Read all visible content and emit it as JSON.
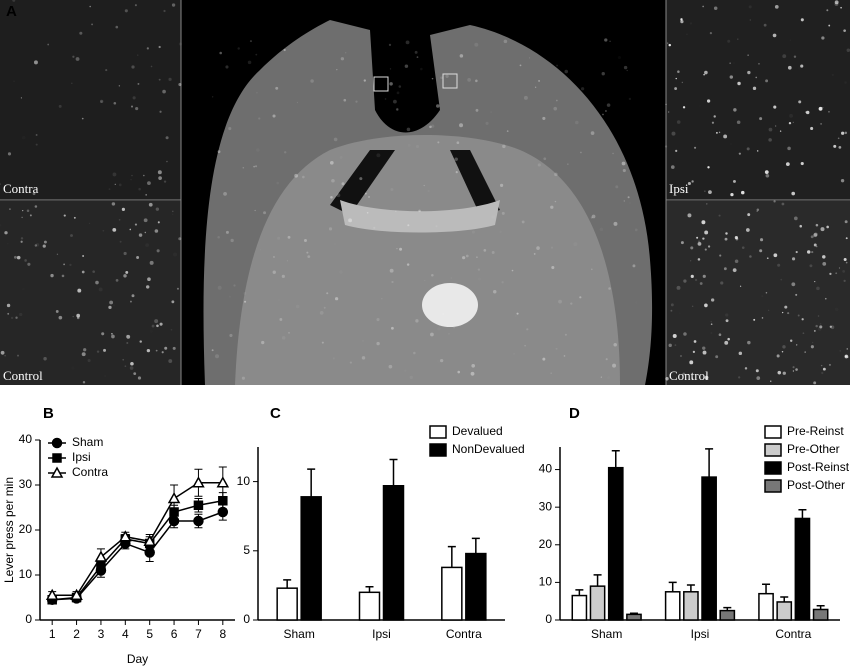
{
  "panel_labels": [
    "A",
    "B",
    "C",
    "D"
  ],
  "image_labels": [
    "Contra",
    "Control",
    "Ipsi",
    "Control"
  ],
  "chart_data": [
    {
      "type": "line",
      "xlabel": "Day",
      "ylabel": "Lever press per min",
      "x": [
        1,
        2,
        3,
        4,
        5,
        6,
        7,
        8
      ],
      "xlim": [
        0.5,
        8.5
      ],
      "xticks": [
        1,
        2,
        3,
        4,
        5,
        6,
        7,
        8
      ],
      "ylim": [
        0,
        40
      ],
      "yticks": [
        0,
        10,
        20,
        30,
        40
      ],
      "legend": "upper left",
      "series": [
        {
          "name": "Sham",
          "color": "#000000",
          "marker": "circle",
          "values": [
            4.5,
            4.8,
            11,
            17,
            15,
            22,
            22,
            24
          ],
          "errors": [
            0.8,
            0.8,
            1.5,
            1.2,
            2,
            1.5,
            1.5,
            1.8
          ]
        },
        {
          "name": "Ipsi",
          "color": "#000000",
          "marker": "square",
          "values": [
            4.5,
            5,
            12,
            18,
            17,
            24,
            25.5,
            26.5
          ],
          "errors": [
            0.8,
            0.8,
            1.5,
            1,
            1.5,
            1.5,
            1.5,
            1.8
          ]
        },
        {
          "name": "Contra",
          "color": "#000000",
          "marker": "triangle-open",
          "values": [
            5.5,
            5.5,
            14,
            18.5,
            17.5,
            27,
            30.5,
            30.5
          ],
          "errors": [
            0.8,
            0.8,
            1.8,
            1,
            1.5,
            3,
            3,
            3.5
          ]
        }
      ]
    },
    {
      "type": "bar",
      "categories": [
        "Sham",
        "Ipsi",
        "Contra"
      ],
      "ylim": [
        0,
        12.5
      ],
      "yticks": [
        0,
        5,
        10
      ],
      "legend": "upper right",
      "series": [
        {
          "name": "Devalued",
          "color": "#ffffff",
          "values": [
            2.3,
            2.0,
            3.8
          ],
          "errors": [
            0.6,
            0.4,
            1.5
          ]
        },
        {
          "name": "NonDevalued",
          "color": "#000000",
          "values": [
            8.9,
            9.7,
            4.8
          ],
          "errors": [
            2.0,
            1.9,
            1.1
          ]
        }
      ]
    },
    {
      "type": "bar",
      "categories": [
        "Sham",
        "Ipsi",
        "Contra"
      ],
      "ylim": [
        0,
        46
      ],
      "yticks": [
        0,
        10,
        20,
        30,
        40
      ],
      "legend": "upper right",
      "series": [
        {
          "name": "Pre-Reinst",
          "color": "#ffffff",
          "values": [
            6.5,
            7.5,
            7
          ],
          "errors": [
            1.5,
            2.5,
            2.5
          ]
        },
        {
          "name": "Pre-Other",
          "color": "#cccccc",
          "values": [
            9,
            7.5,
            4.8
          ],
          "errors": [
            3,
            1.8,
            1.3
          ]
        },
        {
          "name": "Post-Reinst",
          "color": "#000000",
          "values": [
            40.5,
            38,
            27
          ],
          "errors": [
            4.5,
            7.5,
            2.3
          ]
        },
        {
          "name": "Post-Other",
          "color": "#777777",
          "values": [
            1.5,
            2.5,
            2.8
          ],
          "errors": [
            0.3,
            0.8,
            1
          ]
        }
      ]
    }
  ]
}
